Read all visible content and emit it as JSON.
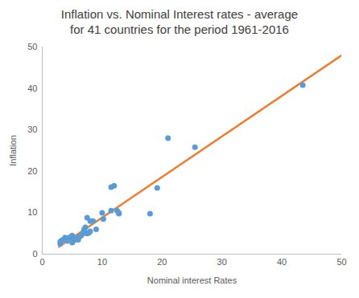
{
  "chart_data": {
    "type": "scatter",
    "title": "Inflation vs. Nominal Interest rates - average for 41 countries for the period 1961-2016",
    "x_label": "Nominal interest Rates",
    "y_label": "Inflation",
    "x": [
      3,
      3,
      3.2,
      3.5,
      3.8,
      4,
      4.2,
      4.5,
      4.8,
      5,
      5,
      5.2,
      5.5,
      6,
      6,
      6.2,
      6.5,
      6.8,
      7,
      7,
      7.2,
      7.5,
      7.5,
      7.8,
      8,
      8,
      8.5,
      9,
      10,
      10.2,
      11.5,
      11.5,
      12,
      12.5,
      12.8,
      12.8,
      18,
      19.2,
      21,
      25.5,
      43.5
    ],
    "values": [
      3,
      2.5,
      3.3,
      3.5,
      4,
      3.5,
      3.2,
      4,
      4.2,
      4.5,
      2.8,
      3.8,
      3.5,
      4,
      3.5,
      4.2,
      4.5,
      5,
      5.5,
      6,
      6.5,
      5,
      8.8,
      5.2,
      8,
      5.5,
      8,
      6,
      10,
      8.5,
      10.5,
      16.2,
      16.5,
      10.5,
      10,
      9.8,
      9.8,
      16,
      28,
      25.8,
      40.8
    ],
    "color": "#5b9bd5",
    "marker": "circle",
    "trendline": {
      "x": [
        2.8,
        50
      ],
      "values": [
        1.8,
        48
      ],
      "color": "#ed7d31"
    },
    "xlim": [
      0,
      50
    ],
    "xticks": [
      0,
      10,
      20,
      30,
      40,
      50
    ],
    "ylim": [
      0,
      50
    ],
    "yticks": [
      0,
      10,
      20,
      30,
      40,
      50
    ],
    "grid": false
  }
}
